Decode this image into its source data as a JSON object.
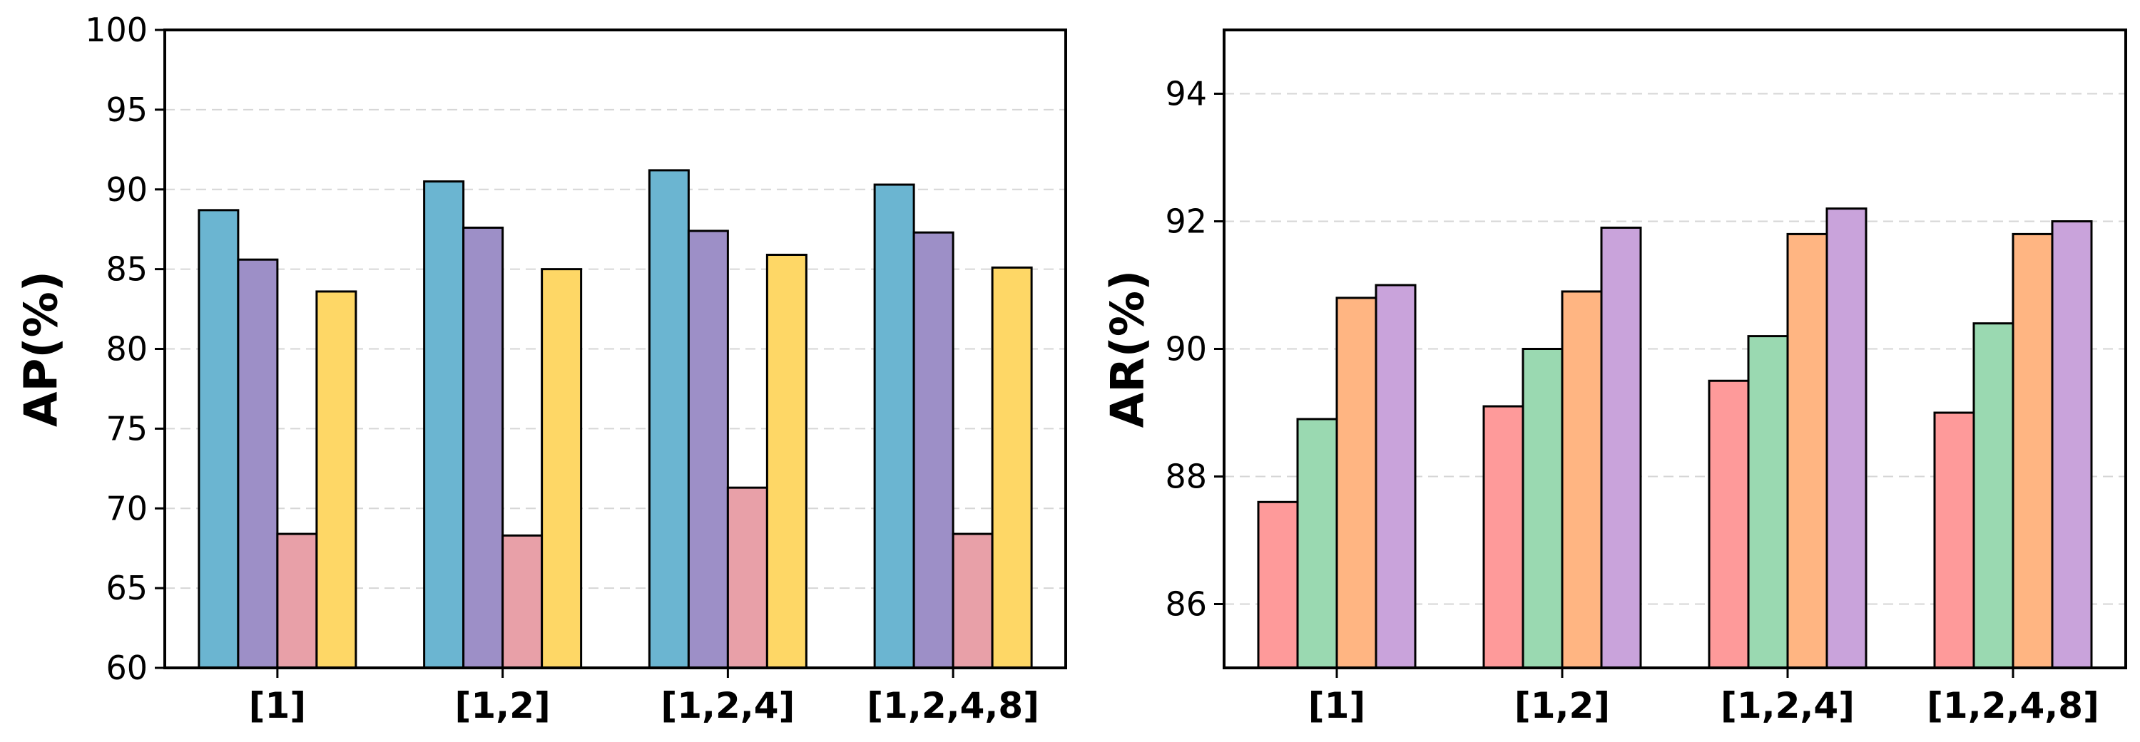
{
  "chart_data": [
    {
      "type": "bar",
      "title": "",
      "xlabel": "",
      "ylabel": "AP(%)",
      "ylim": [
        60,
        100
      ],
      "yticks": [
        60,
        65,
        70,
        75,
        80,
        85,
        90,
        95,
        100
      ],
      "grid": "y-dashed",
      "categories": [
        "[1]",
        "[1,2]",
        "[1,2,4]",
        "[1,2,4,8]"
      ],
      "series": [
        {
          "color": "#6bb5d1",
          "values": [
            88.7,
            90.5,
            91.2,
            90.3
          ]
        },
        {
          "color": "#9d8fc7",
          "values": [
            85.6,
            87.6,
            87.4,
            87.3
          ]
        },
        {
          "color": "#e8a0a8",
          "values": [
            68.4,
            68.3,
            71.3,
            68.4
          ]
        },
        {
          "color": "#fed766",
          "values": [
            83.6,
            85.0,
            85.9,
            85.1
          ]
        }
      ]
    },
    {
      "type": "bar",
      "title": "",
      "xlabel": "",
      "ylabel": "AR(%)",
      "ylim": [
        85,
        95
      ],
      "yticks": [
        86,
        88,
        90,
        92,
        94
      ],
      "grid": "y-dashed",
      "categories": [
        "[1]",
        "[1,2]",
        "[1,2,4]",
        "[1,2,4,8]"
      ],
      "series": [
        {
          "color": "#fe9a9a",
          "values": [
            87.6,
            89.1,
            89.5,
            89.0
          ]
        },
        {
          "color": "#9ad9b1",
          "values": [
            88.9,
            90.0,
            90.2,
            90.4
          ]
        },
        {
          "color": "#ffb582",
          "values": [
            90.8,
            90.9,
            91.8,
            91.8
          ]
        },
        {
          "color": "#c9a3db",
          "values": [
            91.0,
            91.9,
            92.2,
            92.0
          ]
        }
      ]
    }
  ]
}
